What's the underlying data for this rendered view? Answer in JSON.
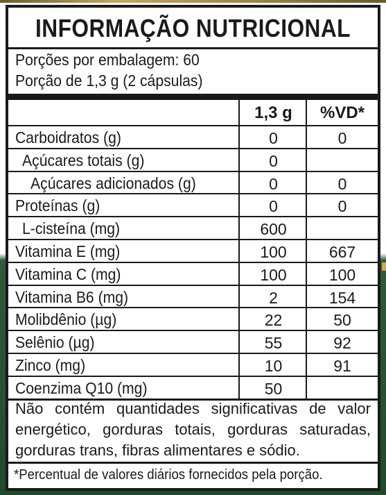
{
  "label": {
    "title": "INFORMAÇÃO NUTRICIONAL",
    "servings_per_package": "Porções por embalagem: 60",
    "serving_size": "Porção de 1,3 g (2 cápsulas)",
    "col_amount": "1,3 g",
    "col_dv": "%VD*",
    "rows": [
      {
        "name": "Carboidratos (g)",
        "indent": 0,
        "amount": "0",
        "dv": "0"
      },
      {
        "name": "Açúcares totais (g)",
        "indent": 1,
        "amount": "0",
        "dv": ""
      },
      {
        "name": "Açúcares adicionados (g)",
        "indent": 2,
        "amount": "0",
        "dv": "0"
      },
      {
        "name": "Proteínas (g)",
        "indent": 0,
        "amount": "0",
        "dv": "0"
      },
      {
        "name": "L-cisteína (mg)",
        "indent": 1,
        "amount": "600",
        "dv": ""
      },
      {
        "name": "Vitamina E (mg)",
        "indent": 0,
        "amount": "100",
        "dv": "667"
      },
      {
        "name": "Vitamina C (mg)",
        "indent": 0,
        "amount": "100",
        "dv": "100"
      },
      {
        "name": "Vitamina B6 (mg)",
        "indent": 0,
        "amount": "2",
        "dv": "154"
      },
      {
        "name": "Molibdênio (µg)",
        "indent": 0,
        "amount": "22",
        "dv": "50"
      },
      {
        "name": "Selênio (µg)",
        "indent": 0,
        "amount": "55",
        "dv": "92"
      },
      {
        "name": "Zinco (mg)",
        "indent": 0,
        "amount": "10",
        "dv": "91"
      },
      {
        "name": "Coenzima Q10 (mg)",
        "indent": 0,
        "amount": "50",
        "dv": ""
      }
    ],
    "footer_statement": "Não contém quantidades significativas de valor energético, gorduras totais, gorduras saturadas, gorduras trans, fibras alimentares e sódio.",
    "footnote": "*Percentual de valores diários fornecidos pela porção."
  }
}
